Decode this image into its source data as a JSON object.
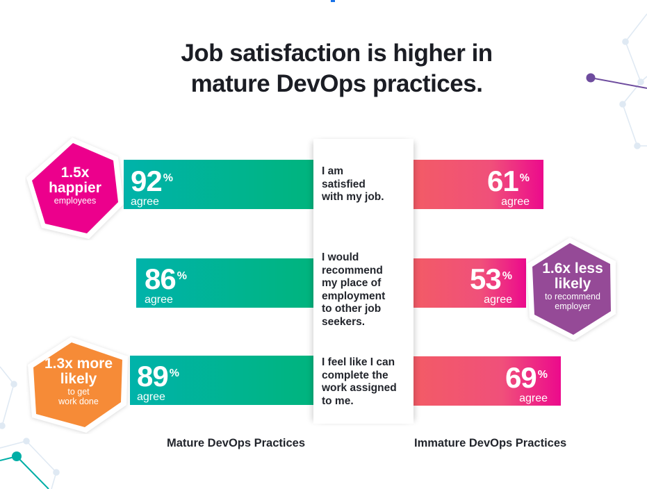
{
  "title": {
    "line1": "Job satisfaction is higher in",
    "line2": "mature DevOps practices."
  },
  "colors": {
    "mature_start": "#00b3aa",
    "mature_end": "#00b47c",
    "immature_start": "#f35b66",
    "immature_end": "#ec0a8c",
    "hex_pink": "#ec008c",
    "hex_purple": "#954a97",
    "hex_orange": "#f68b37"
  },
  "rows": [
    {
      "statement": [
        "I am",
        "satisfied",
        "with my job."
      ],
      "mature": {
        "value": "92",
        "sign": "%",
        "label": "agree"
      },
      "immature": {
        "value": "61",
        "sign": "%",
        "label": "agree"
      }
    },
    {
      "statement": [
        "I would",
        "recommend",
        "my place of",
        "employment",
        "to other job",
        "seekers."
      ],
      "mature": {
        "value": "86",
        "sign": "%",
        "label": "agree"
      },
      "immature": {
        "value": "53",
        "sign": "%",
        "label": "agree"
      }
    },
    {
      "statement": [
        "I feel like I can",
        "complete the",
        "work assigned",
        "to me."
      ],
      "mature": {
        "value": "89",
        "sign": "%",
        "label": "agree"
      },
      "immature": {
        "value": "69",
        "sign": "%",
        "label": "agree"
      }
    }
  ],
  "callouts": {
    "happier": {
      "big1": "1.5x",
      "big2": "happier",
      "small1": "employees"
    },
    "recommend": {
      "big1": "1.6x less",
      "big2": "likely",
      "small1": "to recommend",
      "small2": "employer"
    },
    "workdone": {
      "big1": "1.3x more",
      "big2": "likely",
      "small1": "to get",
      "small2": "work done"
    }
  },
  "footer": {
    "mature_label": "Mature DevOps Practices",
    "immature_label": "Immature DevOps Practices"
  },
  "chart_data": {
    "type": "bar",
    "title": "Job satisfaction is higher in mature DevOps practices.",
    "categories": [
      "I am satisfied with my job.",
      "I would recommend my place of employment to other job seekers.",
      "I feel like I can complete the work assigned to me."
    ],
    "series": [
      {
        "name": "Mature DevOps Practices",
        "values": [
          92,
          86,
          89
        ]
      },
      {
        "name": "Immature DevOps Practices",
        "values": [
          61,
          53,
          69
        ]
      }
    ],
    "unit": "% agree",
    "annotations": [
      "1.5x happier employees",
      "1.6x less likely to recommend employer",
      "1.3x more likely to get work done"
    ],
    "xlabel": "",
    "ylabel": "",
    "ylim": [
      0,
      100
    ],
    "orientation": "horizontal-diverging",
    "grid": false
  }
}
